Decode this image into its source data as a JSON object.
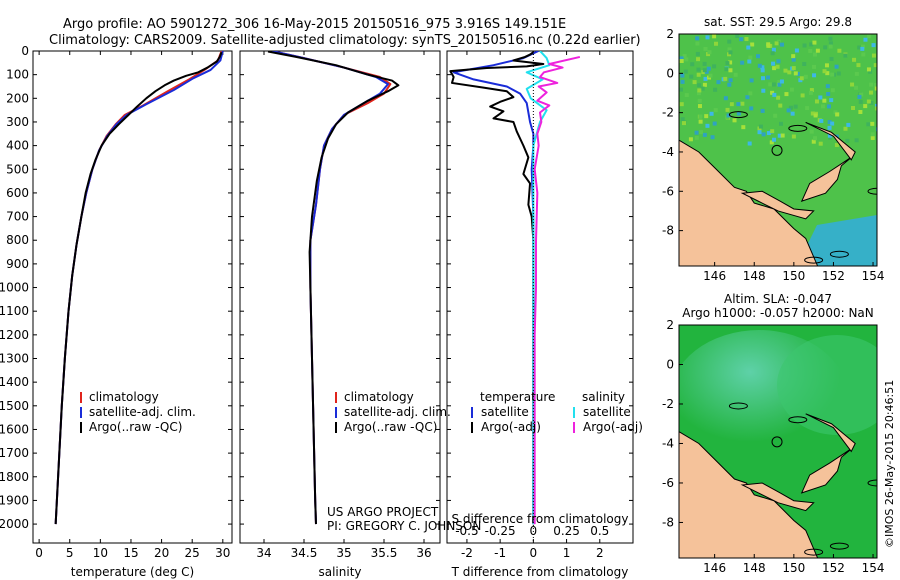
{
  "header": {
    "line1": "Argo profile: AO 5901272_306 16-May-2015 20150516_975 3.916S 149.151E",
    "line2": "Climatology: CARS2009. Satellite-adjusted climatology: synTS_20150516.nc (0.22d earlier)"
  },
  "project": {
    "line1": "US ARGO PROJECT",
    "line2": "PI: GREGORY C. JOHNSON"
  },
  "imos_stamp": "©IMOS 26-May-2015 20:46:51",
  "colors": {
    "clim": "#e0241c",
    "sat": "#1a2cd8",
    "argo": "#000000",
    "sat_s": "#22e0ee",
    "argo_s": "#ee22dd",
    "land": "#f5c29a"
  },
  "chart_data": [
    {
      "type": "line",
      "name": "temperature-panel",
      "xlabel": "temperature (deg C)",
      "xlim": [
        -1,
        31.5
      ],
      "ylim": [
        0,
        2080
      ],
      "xticks": [
        0,
        5,
        10,
        15,
        20,
        25,
        30
      ],
      "yticks": [
        0,
        100,
        200,
        300,
        400,
        500,
        600,
        700,
        800,
        900,
        1000,
        1100,
        1200,
        1300,
        1400,
        1500,
        1600,
        1700,
        1800,
        1900,
        2000
      ],
      "legend": {
        "position": "bottom-right",
        "entries": [
          "climatology",
          "satellite-adj. clim.",
          "Argo(..raw -QC)"
        ]
      },
      "series": [
        {
          "name": "climatology",
          "color_key": "clim",
          "points": [
            [
              29.8,
              0
            ],
            [
              29.2,
              40
            ],
            [
              27,
              80
            ],
            [
              24.5,
              120
            ],
            [
              21,
              170
            ],
            [
              17,
              230
            ],
            [
              14,
              270
            ],
            [
              12.5,
              310
            ],
            [
              11,
              360
            ],
            [
              9.8,
              420
            ],
            [
              8.7,
              500
            ],
            [
              7.7,
              600
            ],
            [
              6.9,
              700
            ],
            [
              6.1,
              820
            ],
            [
              5.4,
              950
            ],
            [
              4.8,
              1100
            ],
            [
              4.2,
              1300
            ],
            [
              3.7,
              1500
            ],
            [
              3.3,
              1700
            ],
            [
              2.9,
              1900
            ],
            [
              2.7,
              2000
            ]
          ]
        },
        {
          "name": "satellite-adj. clim.",
          "color_key": "sat",
          "points": [
            [
              30,
              0
            ],
            [
              29.6,
              40
            ],
            [
              28,
              80
            ],
            [
              25.2,
              115
            ],
            [
              22,
              165
            ],
            [
              17.5,
              225
            ],
            [
              14.3,
              270
            ],
            [
              12.6,
              310
            ],
            [
              11.1,
              360
            ],
            [
              9.8,
              420
            ],
            [
              8.7,
              500
            ],
            [
              7.7,
              600
            ],
            [
              6.9,
              700
            ],
            [
              6.1,
              820
            ],
            [
              5.4,
              950
            ],
            [
              4.8,
              1100
            ],
            [
              4.2,
              1300
            ],
            [
              3.7,
              1500
            ],
            [
              3.3,
              1700
            ],
            [
              2.9,
              1900
            ],
            [
              2.7,
              2000
            ]
          ]
        },
        {
          "name": "Argo(..raw -QC)",
          "color_key": "argo",
          "points": [
            [
              29.8,
              5
            ],
            [
              29.5,
              25
            ],
            [
              29,
              45
            ],
            [
              27.5,
              70
            ],
            [
              26,
              90
            ],
            [
              24,
              105
            ],
            [
              22,
              125
            ],
            [
              20.5,
              145
            ],
            [
              19,
              170
            ],
            [
              17.5,
              200
            ],
            [
              16,
              235
            ],
            [
              14.6,
              270
            ],
            [
              13,
              310
            ],
            [
              11.5,
              350
            ],
            [
              10.2,
              400
            ],
            [
              9.2,
              460
            ],
            [
              8.4,
              520
            ],
            [
              7.6,
              600
            ],
            [
              6.9,
              700
            ],
            [
              6.1,
              820
            ],
            [
              5.4,
              950
            ],
            [
              4.8,
              1100
            ],
            [
              4.2,
              1300
            ],
            [
              3.7,
              1500
            ],
            [
              3.3,
              1700
            ],
            [
              2.9,
              1900
            ],
            [
              2.7,
              2000
            ]
          ]
        }
      ]
    },
    {
      "type": "line",
      "name": "salinity-panel",
      "xlabel": "salinity",
      "xlim": [
        33.7,
        36.2
      ],
      "ylim": [
        0,
        2080
      ],
      "xticks": [
        34,
        34.5,
        35,
        35.5,
        36
      ],
      "legend": {
        "position": "bottom-right",
        "entries": [
          "climatology",
          "satellite-adj. clim.",
          "Argo(..raw -QC)"
        ]
      },
      "series": [
        {
          "name": "climatology",
          "color_key": "clim",
          "points": [
            [
              34.1,
              0
            ],
            [
              34.5,
              30
            ],
            [
              35.0,
              70
            ],
            [
              35.45,
              110
            ],
            [
              35.58,
              140
            ],
            [
              35.5,
              180
            ],
            [
              35.3,
              220
            ],
            [
              35.0,
              270
            ],
            [
              34.85,
              330
            ],
            [
              34.75,
              400
            ],
            [
              34.7,
              500
            ],
            [
              34.65,
              650
            ],
            [
              34.58,
              800
            ],
            [
              34.58,
              1000
            ],
            [
              34.6,
              1300
            ],
            [
              34.62,
              1600
            ],
            [
              34.64,
              1900
            ],
            [
              34.65,
              2000
            ]
          ]
        },
        {
          "name": "satellite-adj. clim.",
          "color_key": "sat",
          "points": [
            [
              34.1,
              0
            ],
            [
              34.5,
              30
            ],
            [
              35.0,
              70
            ],
            [
              35.4,
              110
            ],
            [
              35.55,
              140
            ],
            [
              35.45,
              180
            ],
            [
              35.25,
              220
            ],
            [
              35.0,
              270
            ],
            [
              34.85,
              330
            ],
            [
              34.75,
              400
            ],
            [
              34.7,
              500
            ],
            [
              34.65,
              650
            ],
            [
              34.58,
              800
            ],
            [
              34.58,
              1000
            ],
            [
              34.6,
              1300
            ],
            [
              34.62,
              1600
            ],
            [
              34.64,
              1900
            ],
            [
              34.65,
              2000
            ]
          ]
        },
        {
          "name": "Argo(..raw -QC)",
          "color_key": "argo",
          "points": [
            [
              34.05,
              2
            ],
            [
              34.4,
              25
            ],
            [
              34.9,
              60
            ],
            [
              35.3,
              100
            ],
            [
              35.6,
              125
            ],
            [
              35.68,
              145
            ],
            [
              35.55,
              170
            ],
            [
              35.3,
              210
            ],
            [
              35.05,
              260
            ],
            [
              34.9,
              310
            ],
            [
              34.8,
              370
            ],
            [
              34.72,
              450
            ],
            [
              34.66,
              550
            ],
            [
              34.6,
              700
            ],
            [
              34.57,
              850
            ],
            [
              34.58,
              1000
            ],
            [
              34.6,
              1300
            ],
            [
              34.62,
              1600
            ],
            [
              34.64,
              1900
            ],
            [
              34.65,
              2000
            ]
          ]
        }
      ]
    },
    {
      "type": "line",
      "name": "difference-panel",
      "xlabel": "T difference from climatology",
      "xlabel_top": "S difference from climatology",
      "xlim": [
        -2.6,
        3.0
      ],
      "ylim": [
        0,
        2080
      ],
      "xticks": [
        -2,
        -1,
        0,
        1,
        2
      ],
      "xticks_s": {
        "labels": [
          "-0.5",
          "-0.25",
          "0",
          "0.25",
          "0.5"
        ],
        "values": [
          -0.5,
          -0.25,
          0,
          0.25,
          0.5
        ]
      },
      "s_scale": 4,
      "legend": {
        "position": "bottom",
        "entries": [
          "temperature",
          "salinity",
          "satellite",
          "satellite",
          "Argo(-adj)",
          "Argo(-adj)"
        ]
      },
      "series": [
        {
          "name": "temperature satellite",
          "color_key": "sat",
          "scale": 1,
          "points": [
            [
              0.15,
              0
            ],
            [
              -0.3,
              30
            ],
            [
              -1.2,
              60
            ],
            [
              -2.4,
              90
            ],
            [
              -1.8,
              120
            ],
            [
              -0.8,
              150
            ],
            [
              -0.4,
              180
            ],
            [
              -0.2,
              220
            ],
            [
              -0.1,
              300
            ],
            [
              0,
              350
            ],
            [
              0,
              400
            ],
            [
              -0.05,
              500
            ],
            [
              0,
              700
            ],
            [
              0,
              1000
            ],
            [
              0,
              1500
            ],
            [
              0,
              2000
            ]
          ]
        },
        {
          "name": "temperature Argo(-adj)",
          "color_key": "argo",
          "scale": 1,
          "points": [
            [
              0,
              5
            ],
            [
              -0.1,
              15
            ],
            [
              -0.25,
              25
            ],
            [
              -0.6,
              40
            ],
            [
              0.3,
              55
            ],
            [
              -0.2,
              65
            ],
            [
              -1.4,
              72
            ],
            [
              -2.5,
              85
            ],
            [
              -2.4,
              110
            ],
            [
              -2.45,
              135
            ],
            [
              -1.5,
              155
            ],
            [
              -0.8,
              170
            ],
            [
              -0.6,
              195
            ],
            [
              -1,
              215
            ],
            [
              -1.3,
              235
            ],
            [
              -0.9,
              255
            ],
            [
              -1.2,
              285
            ],
            [
              -0.6,
              300
            ],
            [
              -0.5,
              340
            ],
            [
              -0.3,
              400
            ],
            [
              -0.15,
              450
            ],
            [
              -0.3,
              520
            ],
            [
              -0.1,
              560
            ],
            [
              -0.15,
              650
            ],
            [
              -0.05,
              700
            ],
            [
              0,
              800
            ],
            [
              0,
              900
            ],
            [
              0,
              1000
            ],
            [
              0,
              1500
            ],
            [
              0,
              2000
            ]
          ]
        },
        {
          "name": "salinity satellite",
          "color_key": "sat_s",
          "scale": 4,
          "points": [
            [
              0.05,
              0
            ],
            [
              0.1,
              30
            ],
            [
              0.12,
              60
            ],
            [
              -0.05,
              90
            ],
            [
              0.07,
              120
            ],
            [
              -0.05,
              160
            ],
            [
              -0.02,
              200
            ],
            [
              0.1,
              250
            ],
            [
              0.05,
              300
            ],
            [
              0.0,
              400
            ],
            [
              0.0,
              500
            ],
            [
              0.0,
              700
            ],
            [
              0.0,
              1000
            ],
            [
              0.0,
              1500
            ],
            [
              0.0,
              2000
            ]
          ]
        },
        {
          "name": "salinity Argo(-adj)",
          "color_key": "argo_s",
          "scale": 4,
          "points": [
            [
              0.35,
              25
            ],
            [
              0.12,
              55
            ],
            [
              0.22,
              70
            ],
            [
              0.08,
              90
            ],
            [
              0.05,
              110
            ],
            [
              0.18,
              135
            ],
            [
              0.04,
              150
            ],
            [
              0.1,
              175
            ],
            [
              0.03,
              210
            ],
            [
              0.12,
              230
            ],
            [
              0.05,
              260
            ],
            [
              0.06,
              300
            ],
            [
              0.03,
              350
            ],
            [
              0.04,
              400
            ],
            [
              0.01,
              500
            ],
            [
              0.03,
              600
            ],
            [
              0.02,
              800
            ],
            [
              0.02,
              1000
            ],
            [
              0.01,
              1200
            ],
            [
              0.01,
              1500
            ],
            [
              0.01,
              2000
            ]
          ]
        }
      ]
    },
    {
      "type": "heatmap",
      "name": "sst-map",
      "title": "sat. SST: 29.5 Argo: 29.8",
      "xlim": [
        144.2,
        154.2
      ],
      "ylim": [
        -9.8,
        2.0
      ],
      "xticks": [
        146,
        148,
        150,
        152,
        154
      ],
      "yticks": [
        -8,
        -6,
        -4,
        -2,
        0,
        2
      ],
      "marker": [
        149.151,
        -3.916
      ]
    },
    {
      "type": "heatmap",
      "name": "sla-map",
      "title1": "Altim. SLA: -0.047",
      "title2": "Argo h1000: -0.057 h2000: NaN",
      "xlim": [
        144.2,
        154.2
      ],
      "ylim": [
        -9.8,
        2.0
      ],
      "xticks": [
        146,
        148,
        150,
        152,
        154
      ],
      "yticks": [
        -8,
        -6,
        -4,
        -2,
        0,
        2
      ],
      "marker": [
        149.151,
        -3.916
      ]
    }
  ]
}
